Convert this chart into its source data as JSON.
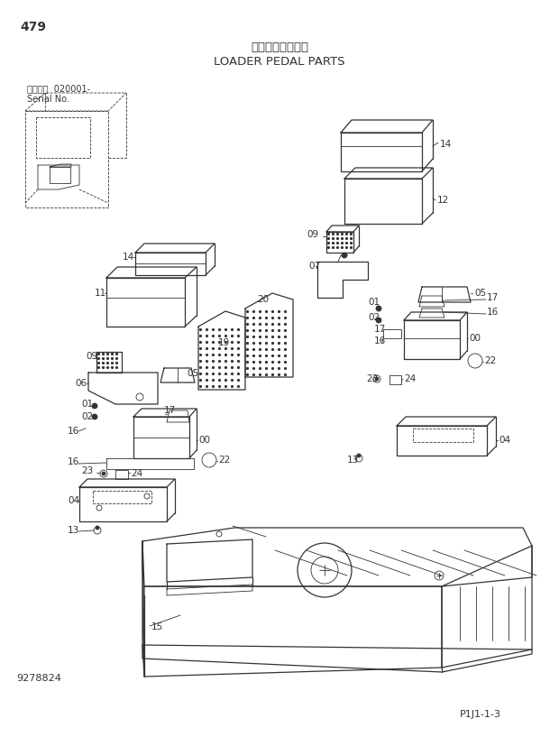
{
  "title_japanese": "ローダペダル部品",
  "title_english": "LOADER PEDAL PARTS",
  "page_number": "479",
  "serial_info_line1": "適用号機  020001-",
  "serial_info_line2": "Serial No.",
  "doc_number": "9278824",
  "page_ref": "P1J1-1-3",
  "bg_color": "#ffffff",
  "line_color": "#333333",
  "figsize": [
    6.2,
    8.17
  ],
  "dpi": 100
}
